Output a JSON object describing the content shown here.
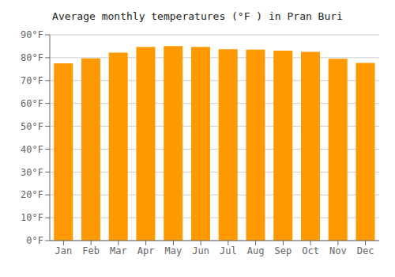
{
  "chart_data": {
    "type": "bar",
    "title": "Average monthly temperatures (°F ) in Pran Buri",
    "categories": [
      "Jan",
      "Feb",
      "Mar",
      "Apr",
      "May",
      "Jun",
      "Jul",
      "Aug",
      "Sep",
      "Oct",
      "Nov",
      "Dec"
    ],
    "values": [
      77.5,
      79.7,
      82.2,
      84.7,
      85.1,
      84.7,
      83.7,
      83.5,
      83.1,
      82.6,
      79.5,
      77.7
    ],
    "color": "#FF9900",
    "ylim": [
      0,
      90
    ],
    "yticks": [
      {
        "value": 0,
        "label": "0°F"
      },
      {
        "value": 10,
        "label": "10°F"
      },
      {
        "value": 20,
        "label": "20°F"
      },
      {
        "value": 30,
        "label": "30°F"
      },
      {
        "value": 40,
        "label": "40°F"
      },
      {
        "value": 50,
        "label": "50°F"
      },
      {
        "value": 60,
        "label": "60°F"
      },
      {
        "value": 70,
        "label": "70°F"
      },
      {
        "value": 80,
        "label": "80°F"
      },
      {
        "value": 90,
        "label": "90°F"
      }
    ],
    "grid": true
  }
}
